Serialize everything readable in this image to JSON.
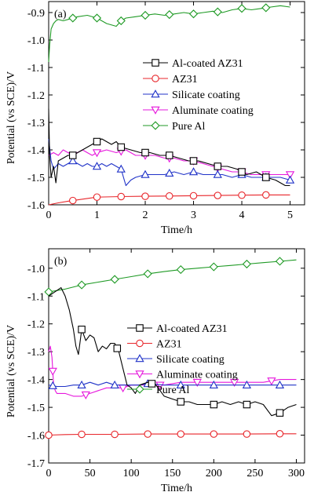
{
  "y_axis_title": "Potential (vs SCE)/V",
  "chart_data": [
    {
      "type": "line",
      "panel_label": "(a)",
      "xlabel": "Time/h",
      "ylabel": "Potential (vs SCE)/V",
      "xlim": [
        0,
        5.3
      ],
      "ylim": [
        -1.6,
        -0.86
      ],
      "x_ticks": [
        0,
        1,
        2,
        3,
        4,
        5
      ],
      "y_ticks": [
        -1.6,
        -1.5,
        -1.4,
        -1.3,
        -1.2,
        -1.1,
        -1.0,
        -0.9
      ],
      "x_tick_labels": [
        "0",
        "1",
        "2",
        "3",
        "4",
        "5"
      ],
      "y_tick_labels": [
        "-1.6",
        "-1.5",
        "-1.4",
        "-1.3",
        "-1.2",
        "-1.1",
        "-1.0",
        "-0.9"
      ],
      "legend_position": "center-right",
      "series": [
        {
          "name": "Al-coated AZ31",
          "color": "#000000",
          "marker": "square",
          "x": [
            0,
            0.02,
            0.05,
            0.1,
            0.15,
            0.2,
            0.3,
            0.4,
            0.5,
            0.6,
            0.7,
            0.8,
            0.9,
            1.0,
            1.1,
            1.2,
            1.3,
            1.4,
            1.5,
            1.7,
            1.9,
            2.1,
            2.3,
            2.5,
            2.7,
            2.9,
            3.1,
            3.3,
            3.5,
            3.7,
            3.9,
            4.1,
            4.3,
            4.5,
            4.7,
            4.9,
            5.0
          ],
          "y": [
            -1.25,
            -1.42,
            -1.5,
            -1.46,
            -1.52,
            -1.44,
            -1.43,
            -1.42,
            -1.42,
            -1.41,
            -1.4,
            -1.39,
            -1.38,
            -1.37,
            -1.36,
            -1.37,
            -1.38,
            -1.37,
            -1.39,
            -1.4,
            -1.41,
            -1.41,
            -1.42,
            -1.42,
            -1.43,
            -1.44,
            -1.44,
            -1.45,
            -1.46,
            -1.46,
            -1.47,
            -1.49,
            -1.48,
            -1.5,
            -1.51,
            -1.53,
            -1.53
          ],
          "marker_x": [
            0.5,
            1.0,
            1.5,
            2.0,
            2.5,
            3.0,
            3.5,
            4.0,
            4.5
          ]
        },
        {
          "name": "AZ31",
          "color": "#e8262b",
          "marker": "circle",
          "x": [
            0,
            0.2,
            0.4,
            0.6,
            0.8,
            1.0,
            1.5,
            2.0,
            2.5,
            3.0,
            3.5,
            4.0,
            4.5,
            5.0
          ],
          "y": [
            -1.6,
            -1.593,
            -1.587,
            -1.582,
            -1.577,
            -1.572,
            -1.57,
            -1.569,
            -1.568,
            -1.567,
            -1.566,
            -1.565,
            -1.564,
            -1.564
          ],
          "marker_x": [
            0.5,
            1.0,
            1.5,
            2.0,
            2.5,
            3.0,
            3.5,
            4.0,
            4.5
          ]
        },
        {
          "name": "Silicate coating",
          "color": "#2033c8",
          "marker": "triangle-up",
          "x": [
            0,
            0.05,
            0.1,
            0.2,
            0.3,
            0.4,
            0.5,
            0.6,
            0.7,
            0.8,
            0.9,
            1.0,
            1.1,
            1.2,
            1.3,
            1.4,
            1.5,
            1.55,
            1.6,
            1.7,
            1.8,
            2.0,
            2.2,
            2.4,
            2.6,
            2.8,
            3.0,
            3.2,
            3.4,
            3.6,
            3.8,
            4.0,
            4.2,
            4.4,
            4.6,
            4.8,
            5.0
          ],
          "y": [
            -1.36,
            -1.44,
            -1.47,
            -1.45,
            -1.46,
            -1.45,
            -1.44,
            -1.45,
            -1.46,
            -1.45,
            -1.46,
            -1.46,
            -1.45,
            -1.46,
            -1.45,
            -1.46,
            -1.47,
            -1.5,
            -1.53,
            -1.51,
            -1.5,
            -1.49,
            -1.49,
            -1.49,
            -1.48,
            -1.49,
            -1.48,
            -1.49,
            -1.49,
            -1.49,
            -1.5,
            -1.49,
            -1.5,
            -1.5,
            -1.5,
            -1.5,
            -1.51
          ],
          "marker_x": [
            0.5,
            1.0,
            1.5,
            2.0,
            2.5,
            3.0,
            3.5,
            4.0,
            4.5,
            5.0
          ]
        },
        {
          "name": "Aluminate coating",
          "color": "#e617dc",
          "marker": "triangle-down",
          "x": [
            0,
            0.1,
            0.2,
            0.3,
            0.4,
            0.5,
            0.6,
            0.7,
            0.8,
            0.9,
            1.0,
            1.2,
            1.4,
            1.6,
            1.8,
            2.0,
            2.2,
            2.4,
            2.6,
            2.8,
            3.0,
            3.2,
            3.4,
            3.6,
            3.8,
            4.0,
            4.2,
            4.4,
            4.6,
            4.8,
            5.0
          ],
          "y": [
            -1.42,
            -1.41,
            -1.42,
            -1.4,
            -1.41,
            -1.42,
            -1.41,
            -1.4,
            -1.41,
            -1.42,
            -1.41,
            -1.4,
            -1.41,
            -1.4,
            -1.42,
            -1.42,
            -1.42,
            -1.43,
            -1.43,
            -1.44,
            -1.44,
            -1.45,
            -1.46,
            -1.47,
            -1.48,
            -1.48,
            -1.49,
            -1.49,
            -1.49,
            -1.49,
            -1.49
          ],
          "marker_x": [
            0.5,
            1.0,
            1.5,
            2.0,
            2.5,
            3.0,
            3.5,
            4.0,
            4.5,
            5.0
          ]
        },
        {
          "name": "Pure Al",
          "color": "#1f9a25",
          "marker": "diamond",
          "x": [
            0,
            0.02,
            0.05,
            0.1,
            0.15,
            0.2,
            0.3,
            0.4,
            0.5,
            0.6,
            0.8,
            1.0,
            1.2,
            1.4,
            1.5,
            1.6,
            1.8,
            2.0,
            2.2,
            2.4,
            2.6,
            2.8,
            3.0,
            3.2,
            3.4,
            3.6,
            3.8,
            4.0,
            4.2,
            4.4,
            4.6,
            4.8,
            5.0
          ],
          "y": [
            -1.08,
            -1.02,
            -0.96,
            -0.94,
            -0.93,
            -0.925,
            -0.93,
            -0.925,
            -0.92,
            -0.915,
            -0.91,
            -0.92,
            -0.94,
            -0.95,
            -0.93,
            -0.92,
            -0.915,
            -0.91,
            -0.905,
            -0.91,
            -0.905,
            -0.9,
            -0.905,
            -0.9,
            -0.895,
            -0.9,
            -0.89,
            -0.885,
            -0.89,
            -0.885,
            -0.88,
            -0.875,
            -0.88
          ],
          "marker_x": [
            0.5,
            1.0,
            1.5,
            2.0,
            2.5,
            3.0,
            3.5,
            4.0,
            4.5
          ]
        }
      ]
    },
    {
      "type": "line",
      "panel_label": "(b)",
      "xlabel": "Time/h",
      "ylabel": "Potential (vs SCE)/V",
      "xlim": [
        0,
        310
      ],
      "ylim": [
        -1.7,
        -0.93
      ],
      "x_ticks": [
        0,
        50,
        100,
        150,
        200,
        250,
        300
      ],
      "y_ticks": [
        -1.7,
        -1.6,
        -1.5,
        -1.4,
        -1.3,
        -1.2,
        -1.1,
        -1.0
      ],
      "x_tick_labels": [
        "0",
        "50",
        "100",
        "150",
        "200",
        "250",
        "300"
      ],
      "y_tick_labels": [
        "-1.7",
        "-1.6",
        "-1.5",
        "-1.4",
        "-1.3",
        "-1.2",
        "-1.1",
        "-1.0"
      ],
      "legend_position": "center-right",
      "series": [
        {
          "name": "Al-coated AZ31",
          "color": "#000000",
          "marker": "square",
          "x": [
            0,
            5,
            10,
            15,
            20,
            25,
            30,
            33,
            36,
            40,
            45,
            50,
            55,
            60,
            65,
            70,
            75,
            80,
            85,
            90,
            95,
            100,
            105,
            110,
            120,
            130,
            140,
            150,
            160,
            170,
            180,
            190,
            200,
            210,
            220,
            230,
            240,
            250,
            260,
            270,
            280,
            290,
            300
          ],
          "y": [
            -1.1,
            -1.09,
            -1.08,
            -1.07,
            -1.1,
            -1.15,
            -1.22,
            -1.28,
            -1.31,
            -1.22,
            -1.26,
            -1.24,
            -1.25,
            -1.3,
            -1.28,
            -1.29,
            -1.27,
            -1.27,
            -1.3,
            -1.36,
            -1.42,
            -1.43,
            -1.45,
            -1.42,
            -1.41,
            -1.42,
            -1.46,
            -1.47,
            -1.48,
            -1.48,
            -1.49,
            -1.49,
            -1.49,
            -1.48,
            -1.49,
            -1.48,
            -1.49,
            -1.48,
            -1.49,
            -1.53,
            -1.52,
            -1.5,
            -1.49
          ],
          "marker_x": [
            40,
            83,
            125,
            160,
            200,
            240,
            280
          ]
        },
        {
          "name": "AZ31",
          "color": "#e8262b",
          "marker": "circle",
          "x": [
            0,
            20,
            40,
            80,
            120,
            160,
            200,
            240,
            280,
            300
          ],
          "y": [
            -1.6,
            -1.598,
            -1.597,
            -1.597,
            -1.596,
            -1.596,
            -1.596,
            -1.596,
            -1.595,
            -1.595
          ],
          "marker_x": [
            0,
            40,
            80,
            120,
            160,
            200,
            240,
            280
          ]
        },
        {
          "name": "Silicate coating",
          "color": "#2033c8",
          "marker": "triangle-up",
          "x": [
            0,
            10,
            20,
            30,
            40,
            50,
            60,
            70,
            80,
            90,
            100,
            110,
            120,
            140,
            160,
            180,
            200,
            220,
            240,
            260,
            280,
            300
          ],
          "y": [
            -1.42,
            -1.425,
            -1.425,
            -1.42,
            -1.42,
            -1.41,
            -1.42,
            -1.41,
            -1.42,
            -1.42,
            -1.42,
            -1.42,
            -1.415,
            -1.42,
            -1.42,
            -1.42,
            -1.42,
            -1.42,
            -1.42,
            -1.42,
            -1.42,
            -1.42
          ],
          "marker_x": [
            5,
            40,
            80,
            120,
            160,
            200,
            240,
            280
          ]
        },
        {
          "name": "Aluminate coating",
          "color": "#e617dc",
          "marker": "triangle-down",
          "x": [
            0,
            2,
            4,
            6,
            8,
            10,
            15,
            20,
            30,
            40,
            50,
            60,
            70,
            80,
            90,
            100,
            120,
            140,
            160,
            180,
            200,
            220,
            240,
            260,
            280,
            300
          ],
          "y": [
            -1.3,
            -1.28,
            -1.32,
            -1.42,
            -1.44,
            -1.45,
            -1.45,
            -1.45,
            -1.46,
            -1.46,
            -1.45,
            -1.44,
            -1.43,
            -1.43,
            -1.43,
            -1.42,
            -1.42,
            -1.42,
            -1.41,
            -1.41,
            -1.41,
            -1.41,
            -1.41,
            -1.41,
            -1.4,
            -1.4
          ],
          "marker_x": [
            5,
            45,
            90,
            135,
            180,
            225,
            270
          ]
        },
        {
          "name": "Pure Al",
          "color": "#1f9a25",
          "marker": "diamond",
          "x": [
            0,
            20,
            40,
            60,
            80,
            100,
            120,
            140,
            160,
            180,
            200,
            220,
            240,
            260,
            280,
            300
          ],
          "y": [
            -1.085,
            -1.075,
            -1.06,
            -1.05,
            -1.04,
            -1.03,
            -1.02,
            -1.012,
            -1.005,
            -1.0,
            -0.995,
            -0.99,
            -0.985,
            -0.98,
            -0.975,
            -0.97
          ],
          "marker_x": [
            0,
            40,
            80,
            120,
            160,
            200,
            240,
            280
          ]
        }
      ]
    }
  ]
}
